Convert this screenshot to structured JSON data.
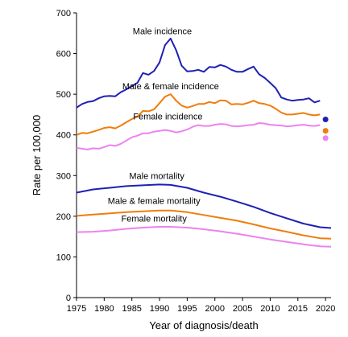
{
  "chart_data": {
    "type": "line",
    "xlabel": "Year of diagnosis/death",
    "ylabel": "Rate per 100,000",
    "xlim": [
      1975,
      2021
    ],
    "ylim": [
      0,
      700
    ],
    "xticks": [
      1975,
      1980,
      1985,
      1990,
      1995,
      2000,
      2005,
      2010,
      2015,
      2020
    ],
    "yticks": [
      0,
      100,
      200,
      300,
      400,
      500,
      600,
      700
    ],
    "grid": false,
    "legend": "inline labels",
    "series": [
      {
        "name": "Male incidence",
        "color": "#1f1fb4",
        "x": [
          1975,
          1976,
          1977,
          1978,
          1979,
          1980,
          1981,
          1982,
          1983,
          1984,
          1985,
          1986,
          1987,
          1988,
          1989,
          1990,
          1991,
          1992,
          1993,
          1994,
          1995,
          1996,
          1997,
          1998,
          1999,
          2000,
          2001,
          2002,
          2003,
          2004,
          2005,
          2006,
          2007,
          2008,
          2009,
          2010,
          2011,
          2012,
          2013,
          2014,
          2015,
          2016,
          2017,
          2018,
          2019
        ],
        "y": [
          467,
          476,
          481,
          483,
          490,
          495,
          496,
          495,
          505,
          512,
          520,
          528,
          552,
          548,
          557,
          578,
          621,
          637,
          608,
          570,
          556,
          557,
          560,
          555,
          567,
          566,
          572,
          568,
          560,
          555,
          555,
          562,
          568,
          549,
          540,
          528,
          515,
          492,
          487,
          484,
          486,
          487,
          490,
          480,
          484
        ]
      },
      {
        "name": "Male & female incidence",
        "color": "#f07d0a",
        "x": [
          1975,
          1976,
          1977,
          1978,
          1979,
          1980,
          1981,
          1982,
          1983,
          1984,
          1985,
          1986,
          1987,
          1988,
          1989,
          1990,
          1991,
          1992,
          1993,
          1994,
          1995,
          1996,
          1997,
          1998,
          1999,
          2000,
          2001,
          2002,
          2003,
          2004,
          2005,
          2006,
          2007,
          2008,
          2009,
          2010,
          2011,
          2012,
          2013,
          2014,
          2015,
          2016,
          2017,
          2018,
          2019
        ],
        "y": [
          400,
          405,
          404,
          408,
          412,
          417,
          419,
          416,
          423,
          431,
          439,
          445,
          459,
          458,
          463,
          478,
          494,
          500,
          484,
          472,
          467,
          471,
          476,
          476,
          481,
          478,
          485,
          484,
          475,
          476,
          475,
          479,
          484,
          478,
          476,
          472,
          464,
          455,
          450,
          450,
          452,
          454,
          450,
          448,
          450
        ]
      },
      {
        "name": "Female incidence",
        "color": "#ee82ee",
        "x": [
          1975,
          1976,
          1977,
          1978,
          1979,
          1980,
          1981,
          1982,
          1983,
          1984,
          1985,
          1986,
          1987,
          1988,
          1989,
          1990,
          1991,
          1992,
          1993,
          1994,
          1995,
          1996,
          1997,
          1998,
          1999,
          2000,
          2001,
          2002,
          2003,
          2004,
          2005,
          2006,
          2007,
          2008,
          2009,
          2010,
          2011,
          2012,
          2013,
          2014,
          2015,
          2016,
          2017,
          2018,
          2019
        ],
        "y": [
          368,
          366,
          364,
          367,
          366,
          370,
          375,
          373,
          378,
          386,
          394,
          398,
          404,
          404,
          408,
          410,
          412,
          410,
          406,
          409,
          413,
          420,
          424,
          422,
          422,
          425,
          427,
          426,
          422,
          421,
          422,
          424,
          425,
          429,
          428,
          425,
          424,
          423,
          421,
          422,
          424,
          425,
          423,
          422,
          424
        ]
      },
      {
        "name": "Male mortality",
        "color": "#1f1fb4",
        "x": [
          1975,
          1978,
          1981,
          1984,
          1987,
          1990,
          1992,
          1995,
          1998,
          2001,
          2004,
          2007,
          2010,
          2013,
          2016,
          2019,
          2021
        ],
        "y": [
          258,
          266,
          270,
          274,
          276,
          278,
          277,
          270,
          258,
          248,
          236,
          223,
          208,
          195,
          182,
          173,
          171
        ]
      },
      {
        "name": "Male & female mortality",
        "color": "#f07d0a",
        "x": [
          1975,
          1978,
          1981,
          1984,
          1987,
          1990,
          1992,
          1995,
          1998,
          2001,
          2004,
          2007,
          2010,
          2013,
          2016,
          2019,
          2021
        ],
        "y": [
          201,
          204,
          207,
          210,
          212,
          214,
          214,
          210,
          203,
          196,
          189,
          180,
          170,
          162,
          153,
          146,
          145
        ]
      },
      {
        "name": "Female mortality",
        "color": "#ee82ee",
        "x": [
          1975,
          1978,
          1981,
          1984,
          1987,
          1990,
          1992,
          1995,
          1998,
          2001,
          2004,
          2007,
          2010,
          2013,
          2016,
          2019,
          2021
        ],
        "y": [
          161,
          162,
          165,
          169,
          172,
          174,
          174,
          172,
          168,
          163,
          157,
          150,
          143,
          137,
          131,
          126,
          125
        ]
      }
    ],
    "points_2020": [
      {
        "series": "Male incidence",
        "x": 2020,
        "y": 438,
        "color": "#1f1fb4"
      },
      {
        "series": "Male & female incidence",
        "x": 2020,
        "y": 410,
        "color": "#f07d0a"
      },
      {
        "series": "Female incidence",
        "x": 2020,
        "y": 392,
        "color": "#ee82ee"
      }
    ],
    "labels": [
      {
        "text": "Male incidence",
        "x": 1990.5,
        "y": 648
      },
      {
        "text": "Male & female incidence",
        "x": 1992,
        "y": 512
      },
      {
        "text": "Female incidence",
        "x": 1991.5,
        "y": 438
      },
      {
        "text": "Male mortality",
        "x": 1989.5,
        "y": 292
      },
      {
        "text": "Male & female mortality",
        "x": 1989,
        "y": 230
      },
      {
        "text": "Female mortality",
        "x": 1989,
        "y": 187
      }
    ]
  }
}
